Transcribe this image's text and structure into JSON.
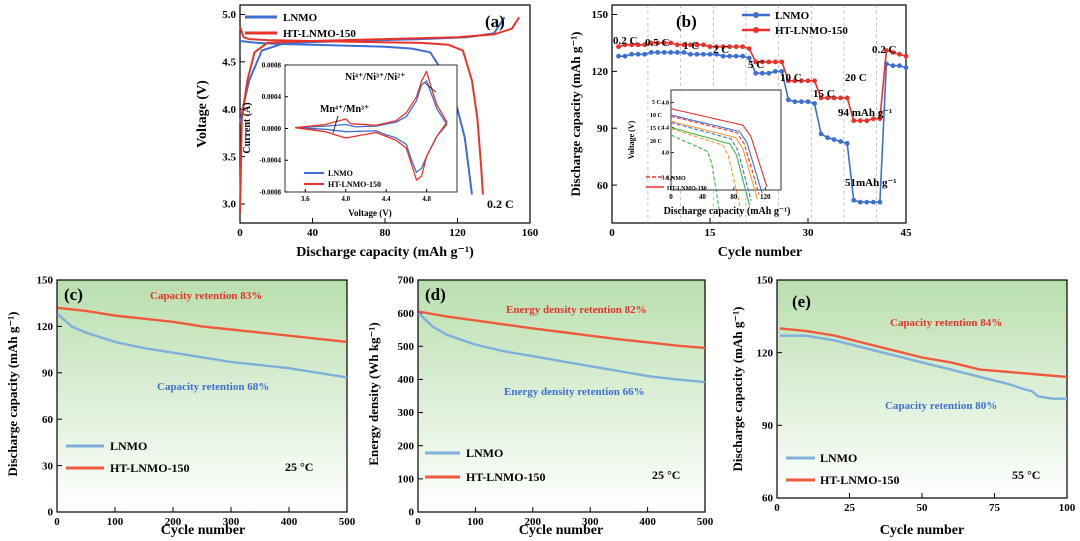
{
  "colors": {
    "lnmo": "#3d6fd1",
    "ht": "#e8332b",
    "lnmo_light": "#7fb0dc",
    "ht_light": "#f05a3c",
    "green_top": "#b9dfae",
    "green_bottom": "#ffffff",
    "orange": "#f29b2c",
    "green_curve": "#3bb54a"
  },
  "chart_data": [
    {
      "id": "a",
      "type": "line",
      "label": "(a)",
      "xlabel": "Discharge capacity (mAh g⁻¹)",
      "ylabel": "Voltage (V)",
      "xlim": [
        0,
        160
      ],
      "ylim": [
        2.8,
        5.1
      ],
      "xticks": [
        "0",
        "40",
        "80",
        "120",
        "160"
      ],
      "yticks": [
        "3.0",
        "3.5",
        "4.0",
        "4.5",
        "5.0"
      ],
      "legend": [
        "LNMO",
        "HT-LNMO-150"
      ],
      "annotation": "0.2 C",
      "series": [
        {
          "name": "LNMO charge",
          "x": [
            0,
            2,
            5,
            12,
            25,
            60,
            100,
            125,
            140,
            146
          ],
          "y": [
            3.85,
            4.05,
            4.3,
            4.62,
            4.7,
            4.72,
            4.74,
            4.76,
            4.8,
            4.97
          ]
        },
        {
          "name": "LNMO discharge",
          "x": [
            0,
            5,
            10,
            20,
            40,
            60,
            80,
            95,
            105,
            115,
            120,
            124,
            126,
            128
          ],
          "y": [
            4.72,
            4.71,
            4.7,
            4.69,
            4.68,
            4.67,
            4.66,
            4.64,
            4.6,
            4.3,
            4.0,
            3.7,
            3.4,
            3.1
          ]
        },
        {
          "name": "HT-LNMO-150 charge",
          "x": [
            0,
            1,
            4,
            8,
            15,
            40,
            80,
            120,
            140,
            150,
            154
          ],
          "y": [
            2.9,
            3.9,
            4.3,
            4.6,
            4.7,
            4.72,
            4.74,
            4.76,
            4.79,
            4.85,
            4.97
          ]
        },
        {
          "name": "HT-LNMO-150 discharge",
          "x": [
            0,
            2,
            5,
            15,
            40,
            70,
            100,
            115,
            123,
            128,
            131,
            133,
            134
          ],
          "y": [
            4.87,
            4.76,
            4.74,
            4.73,
            4.72,
            4.71,
            4.7,
            4.68,
            4.62,
            4.3,
            3.9,
            3.4,
            3.1
          ]
        }
      ],
      "inset": {
        "xlabel": "Voltage (V)",
        "ylabel": "Current (A)",
        "xlim": [
          3.4,
          5.1
        ],
        "ylim": [
          -0.0008,
          0.0008
        ],
        "xticks": [
          "3.6",
          "4.0",
          "4.4",
          "4.8"
        ],
        "yticks": [
          "0.0008",
          "0.0004",
          "0.0000",
          "-0.0004",
          "-0.0008"
        ],
        "labels": [
          "Ni⁴⁺/Ni³⁺/Ni²⁺",
          "Mn⁴⁺/Mn³⁺"
        ],
        "legend": [
          "LNMO",
          "HT-LNMO-150"
        ],
        "series": [
          {
            "name": "LNMO CV",
            "x": [
              3.5,
              3.8,
              4.0,
              4.1,
              4.3,
              4.5,
              4.6,
              4.7,
              4.75,
              4.8,
              4.9,
              5.0,
              4.9,
              4.8,
              4.75,
              4.7,
              4.65,
              4.6,
              4.5,
              4.4,
              4.3,
              4.0,
              3.8,
              3.5
            ],
            "y": [
              1e-05,
              3e-05,
              5e-05,
              2e-05,
              3e-05,
              8e-05,
              0.00015,
              0.00035,
              0.00055,
              0.0006,
              0.00025,
              5e-05,
              -0.0001,
              -0.00035,
              -0.0005,
              -0.00055,
              -0.0004,
              -0.0002,
              -0.00012,
              -8e-05,
              -3e-05,
              -4e-05,
              -1e-05,
              1e-05
            ]
          },
          {
            "name": "HT-LNMO-150 CV",
            "x": [
              3.5,
              3.8,
              4.0,
              4.05,
              4.3,
              4.5,
              4.6,
              4.7,
              4.75,
              4.8,
              4.85,
              4.9,
              5.0,
              4.9,
              4.8,
              4.75,
              4.7,
              4.65,
              4.6,
              4.5,
              4.4,
              4.3,
              4.0,
              3.8,
              3.5
            ],
            "y": [
              1e-05,
              5e-05,
              0.00012,
              6e-05,
              4e-05,
              0.0001,
              0.0002,
              0.0004,
              0.0006,
              0.00072,
              0.0005,
              0.0003,
              8e-05,
              -0.0001,
              -0.00035,
              -0.0006,
              -0.00065,
              -0.00045,
              -0.00025,
              -0.00015,
              -0.0001,
              -5e-05,
              -0.00012,
              -4e-05,
              1e-05
            ]
          }
        ]
      }
    },
    {
      "id": "b",
      "type": "line",
      "label": "(b)",
      "xlabel": "Cycle number",
      "ylabel": "Discharge capacity (mAh g⁻¹)",
      "xlim": [
        0,
        45
      ],
      "ylim": [
        40,
        155
      ],
      "xticks": [
        "0",
        "15",
        "30",
        "45"
      ],
      "yticks": [
        "60",
        "90",
        "120",
        "150"
      ],
      "legend": [
        "LNMO",
        "HT-LNMO-150"
      ],
      "rate_labels": [
        "0.2 C",
        "0.5 C",
        "1 C",
        "2 C",
        "5 C",
        "10 C",
        "15 C",
        "20 C",
        "0.2 C"
      ],
      "annotations": [
        "94 mAh g⁻¹",
        "51mAh g⁻¹"
      ],
      "series": [
        {
          "name": "LNMO",
          "x": [
            1,
            2,
            3,
            4,
            5,
            6,
            7,
            8,
            9,
            10,
            11,
            12,
            13,
            14,
            15,
            16,
            17,
            18,
            19,
            20,
            21,
            22,
            23,
            24,
            25,
            26,
            27,
            28,
            29,
            30,
            31,
            32,
            33,
            34,
            35,
            36,
            37,
            38,
            39,
            40,
            41,
            42,
            43,
            44,
            45
          ],
          "y": [
            128,
            128,
            129,
            129,
            129,
            130,
            130,
            130,
            130,
            130,
            130,
            129,
            129,
            129,
            129,
            129,
            128,
            128,
            128,
            128,
            127,
            119,
            119,
            119,
            120,
            120,
            105,
            104,
            104,
            104,
            103,
            87,
            85,
            84,
            83,
            82,
            52,
            51,
            51,
            51,
            51,
            124,
            123,
            123,
            122
          ]
        },
        {
          "name": "HT-LNMO-150",
          "x": [
            1,
            2,
            3,
            4,
            5,
            6,
            7,
            8,
            9,
            10,
            11,
            12,
            13,
            14,
            15,
            16,
            17,
            18,
            19,
            20,
            21,
            22,
            23,
            24,
            25,
            26,
            27,
            28,
            29,
            30,
            31,
            32,
            33,
            34,
            35,
            36,
            37,
            38,
            39,
            40,
            41,
            42,
            43,
            44,
            45
          ],
          "y": [
            133,
            134,
            134,
            134,
            134,
            135,
            135,
            135,
            135,
            134,
            134,
            134,
            134,
            134,
            133,
            133,
            133,
            133,
            133,
            133,
            132,
            125,
            125,
            125,
            125,
            125,
            115,
            115,
            115,
            115,
            115,
            106,
            106,
            106,
            106,
            106,
            94,
            94,
            94,
            95,
            95,
            131,
            130,
            129,
            128
          ]
        }
      ],
      "inset": {
        "xlabel": "Discharge capacity (mAh g⁻¹)",
        "ylabel": "Voltage (V)",
        "xticks": [
          "0",
          "40",
          "80",
          "120"
        ],
        "yticks": [
          "4.8",
          "4.4",
          "4.0",
          "3.6"
        ],
        "rate_labels": [
          "5 C",
          "10 C",
          "15 C",
          "20 C"
        ],
        "legend": [
          "LNMO",
          "HT-LNMO-150"
        ]
      }
    },
    {
      "id": "c",
      "type": "line",
      "label": "(c)",
      "xlabel": "Cycle number",
      "ylabel": "Discharge capacity (mAh g⁻¹)",
      "xlim": [
        0,
        500
      ],
      "ylim": [
        0,
        150
      ],
      "xticks": [
        "0",
        "100",
        "200",
        "300",
        "400",
        "500"
      ],
      "yticks": [
        "0",
        "30",
        "60",
        "90",
        "120",
        "150"
      ],
      "legend": [
        "LNMO",
        "HT-LNMO-150"
      ],
      "temperature": "25 °C",
      "annotations": [
        "Capacity retention 83%",
        "Capacity retention 68%"
      ],
      "series": [
        {
          "name": "LNMO",
          "x": [
            1,
            25,
            50,
            100,
            150,
            200,
            250,
            300,
            350,
            400,
            450,
            500
          ],
          "y": [
            128,
            120,
            116,
            110,
            106,
            103,
            100,
            97,
            95,
            93,
            90,
            87
          ]
        },
        {
          "name": "HT-LNMO-150",
          "x": [
            1,
            50,
            100,
            150,
            200,
            250,
            300,
            350,
            400,
            450,
            500
          ],
          "y": [
            132,
            130,
            127,
            125,
            123,
            120,
            118,
            116,
            114,
            112,
            110
          ]
        }
      ]
    },
    {
      "id": "d",
      "type": "line",
      "label": "(d)",
      "xlabel": "Cycle number",
      "ylabel": "Energy density (Wh kg⁻¹)",
      "xlim": [
        0,
        500
      ],
      "ylim": [
        0,
        700
      ],
      "xticks": [
        "0",
        "100",
        "200",
        "300",
        "400",
        "500"
      ],
      "yticks": [
        "0",
        "100",
        "200",
        "300",
        "400",
        "500",
        "600",
        "700"
      ],
      "legend": [
        "LNMO",
        "HT-LNMO-150"
      ],
      "temperature": "25 °C",
      "annotations": [
        "Energy density retention 82%",
        "Energy density retention 66%"
      ],
      "series": [
        {
          "name": "LNMO",
          "x": [
            1,
            25,
            50,
            100,
            150,
            200,
            250,
            300,
            350,
            400,
            450,
            500
          ],
          "y": [
            600,
            560,
            535,
            505,
            485,
            470,
            455,
            440,
            425,
            410,
            400,
            392
          ]
        },
        {
          "name": "HT-LNMO-150",
          "x": [
            1,
            50,
            100,
            150,
            200,
            250,
            300,
            350,
            400,
            450,
            500
          ],
          "y": [
            605,
            590,
            578,
            566,
            554,
            543,
            532,
            521,
            512,
            502,
            495
          ]
        }
      ]
    },
    {
      "id": "e",
      "type": "line",
      "label": "(e)",
      "xlabel": "Cycle number",
      "ylabel": "Discharge capacity (mAh g⁻¹)",
      "xlim": [
        0,
        100
      ],
      "ylim": [
        60,
        150
      ],
      "xticks": [
        "0",
        "25",
        "50",
        "75",
        "100"
      ],
      "yticks": [
        "60",
        "90",
        "120",
        "150"
      ],
      "legend": [
        "LNMO",
        "HT-LNMO-150"
      ],
      "temperature": "55 °C",
      "annotations": [
        "Capacity retention 84%",
        "Capacity retention 80%"
      ],
      "series": [
        {
          "name": "LNMO",
          "x": [
            1,
            10,
            20,
            30,
            40,
            50,
            60,
            70,
            80,
            85,
            88,
            90,
            95,
            100
          ],
          "y": [
            127,
            127,
            125,
            122,
            119,
            116,
            113,
            110,
            107,
            105,
            104,
            102,
            101,
            101
          ]
        },
        {
          "name": "HT-LNMO-150",
          "x": [
            1,
            10,
            20,
            30,
            40,
            50,
            60,
            70,
            80,
            90,
            100
          ],
          "y": [
            130,
            129,
            127,
            124,
            121,
            118,
            116,
            113,
            112,
            111,
            110
          ]
        }
      ]
    }
  ]
}
